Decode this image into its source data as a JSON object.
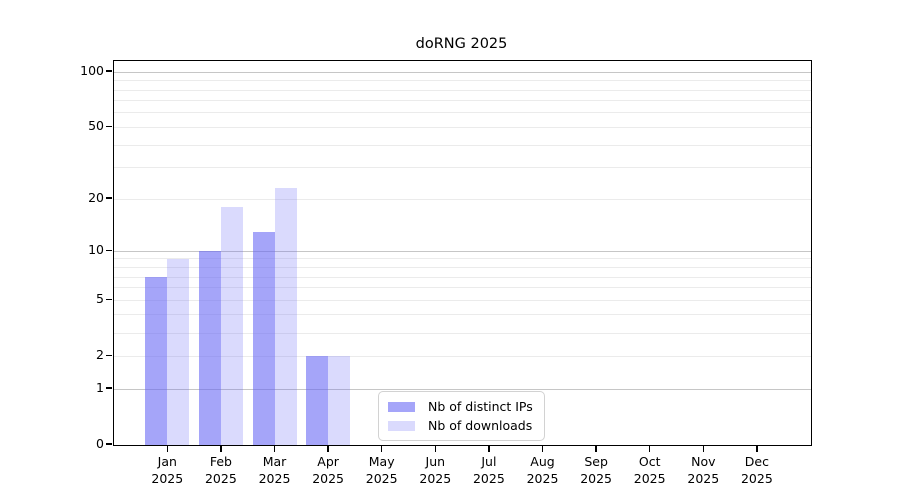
{
  "title": "doRNG 2025",
  "chart_data": {
    "type": "bar",
    "title": "doRNG 2025",
    "categories": [
      "Jan 2025",
      "Feb 2025",
      "Mar 2025",
      "Apr 2025",
      "May 2025",
      "Jun 2025",
      "Jul 2025",
      "Aug 2025",
      "Sep 2025",
      "Oct 2025",
      "Nov 2025",
      "Dec 2025"
    ],
    "series": [
      {
        "name": "Nb of distinct IPs",
        "values": [
          7,
          10,
          13,
          2,
          0,
          0,
          0,
          0,
          0,
          0,
          0,
          0
        ],
        "color": "rgba(100,100,245,0.58)"
      },
      {
        "name": "Nb of downloads",
        "values": [
          9,
          18,
          23,
          2,
          0,
          0,
          0,
          0,
          0,
          0,
          0,
          0
        ],
        "color": "rgba(100,100,245,0.24)"
      }
    ],
    "xlabel": "",
    "ylabel": "",
    "yscale": "log10(1+y)",
    "ylim": [
      0,
      115
    ],
    "yticks": [
      0,
      1,
      2,
      5,
      10,
      20,
      50,
      100
    ],
    "grid_minor": [
      2,
      3,
      4,
      5,
      6,
      7,
      8,
      9,
      20,
      30,
      40,
      50,
      60,
      70,
      80,
      90
    ],
    "grid_major": [
      1,
      10,
      100
    ],
    "grid": "on",
    "legend_position": "lower-left-of-center"
  },
  "colors": {
    "background": "#ffffff",
    "bar_ips": "rgba(100,100,245,0.58)",
    "bar_downloads": "rgba(100,100,245,0.24)",
    "bar_ips_rendered": "#a5a5f9",
    "bar_downloads_rendered": "#d9d9fc",
    "grid_minor": "#ebebeb",
    "grid_major": "#c6c6c6",
    "spine": "#000000",
    "text": "#000000",
    "legend_border": "#d2d2d2"
  }
}
